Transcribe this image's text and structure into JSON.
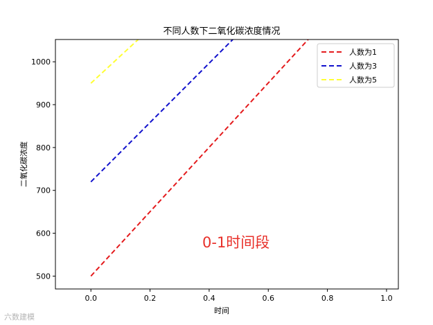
{
  "chart_data": {
    "type": "line",
    "title": "不同人数下二氧化碳浓度情况",
    "xlabel": "时间",
    "ylabel": "二氧化碳浓度",
    "xlim": [
      -0.12,
      1.04
    ],
    "ylim": [
      470,
      1052
    ],
    "xticks": [
      0.0,
      0.2,
      0.4,
      0.6,
      0.8,
      1.0
    ],
    "xtick_labels": [
      "0.0",
      "0.2",
      "0.4",
      "0.6",
      "0.8",
      "1.0"
    ],
    "yticks": [
      500,
      600,
      700,
      800,
      900,
      1000
    ],
    "ytick_labels": [
      "500",
      "600",
      "700",
      "800",
      "900",
      "1000"
    ],
    "grid": false,
    "legend_position": "top-right",
    "line_style": "dashed",
    "series": [
      {
        "name": "人数为1",
        "color": "#e41a1c",
        "x": [
          0.0,
          0.735
        ],
        "y": [
          500,
          1052
        ]
      },
      {
        "name": "人数为3",
        "color": "#1010cc",
        "x": [
          0.0,
          0.48
        ],
        "y": [
          720,
          1052
        ]
      },
      {
        "name": "人数为5",
        "color": "#ffff33",
        "x": [
          0.0,
          0.16
        ],
        "y": [
          950,
          1052
        ]
      }
    ],
    "annotation": "0-1时间段"
  },
  "watermark": "六数建模"
}
